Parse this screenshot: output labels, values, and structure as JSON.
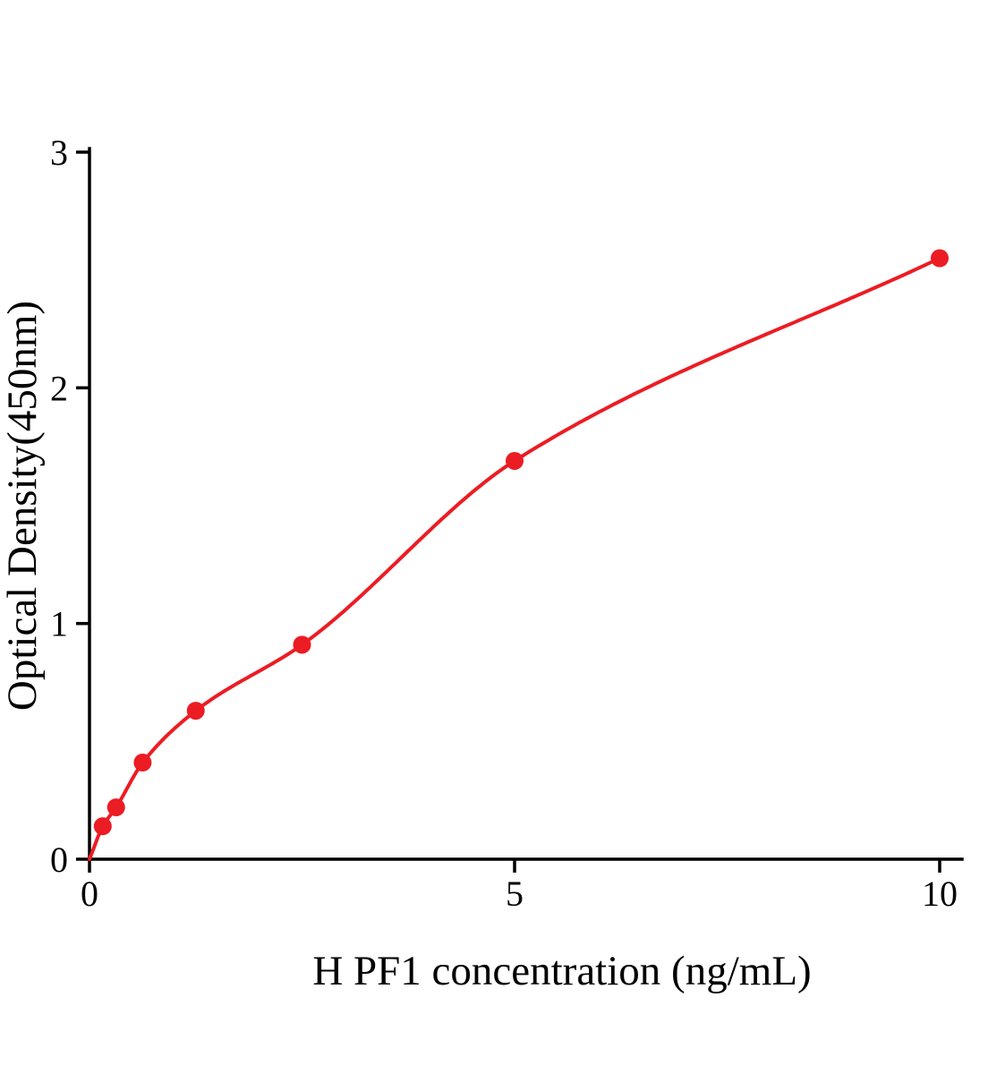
{
  "chart_data": {
    "type": "scatter",
    "title": "",
    "xlabel": "H PF1 concentration (ng/mL)",
    "ylabel": "Optical Density(450nm)",
    "x": [
      0.156,
      0.313,
      0.625,
      1.25,
      2.5,
      5,
      10
    ],
    "y": [
      0.14,
      0.22,
      0.41,
      0.63,
      0.91,
      1.69,
      2.55
    ],
    "curve_start": [
      0,
      0
    ],
    "fit": "smooth saturating standard curve through origin and data points",
    "xlim": [
      0,
      10.25
    ],
    "ylim": [
      0,
      3
    ],
    "xticks": [
      0,
      5,
      10
    ],
    "yticks": [
      0,
      1,
      2,
      3
    ],
    "grid": false,
    "legend": "none",
    "point_color": "#ec1c24",
    "line_color": "#ec1c24",
    "axis_color": "#000000"
  }
}
